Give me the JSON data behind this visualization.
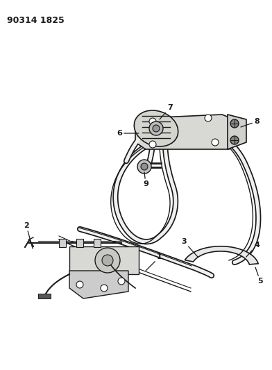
{
  "title": "90314 1825",
  "bg_color": "#ffffff",
  "line_color": "#1a1a1a",
  "label_color": "#1a1a1a",
  "fig_w": 3.92,
  "fig_h": 5.33,
  "dpi": 100
}
